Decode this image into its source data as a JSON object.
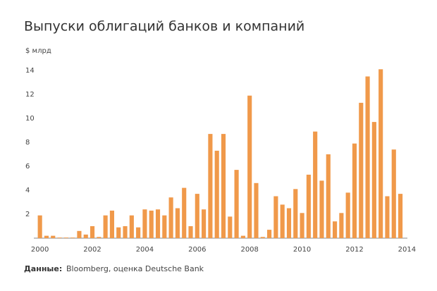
{
  "chart_data": {
    "type": "bar",
    "title": "Выпуски облигаций банков и компаний",
    "y_label": "$ млрд",
    "source_label": "Данные:",
    "source": "Bloomberg, оценка Deutsche Bank",
    "color": "#f0994a",
    "categories": [
      "2000",
      null,
      null,
      null,
      null,
      null,
      null,
      null,
      "2002",
      null,
      null,
      null,
      null,
      null,
      null,
      null,
      "2004",
      null,
      null,
      null,
      null,
      null,
      null,
      null,
      "2006",
      null,
      null,
      null,
      null,
      null,
      null,
      null,
      "2008",
      null,
      null,
      null,
      null,
      null,
      null,
      null,
      "2010",
      null,
      null,
      null,
      null,
      null,
      null,
      null,
      "2012",
      null,
      null,
      null,
      null,
      null,
      null,
      null,
      "2014"
    ],
    "values": [
      1.9,
      0.2,
      0.2,
      0.05,
      0.05,
      0.05,
      0.6,
      0.3,
      1.0,
      0.1,
      1.9,
      2.3,
      0.9,
      1.0,
      1.9,
      0.9,
      2.4,
      2.3,
      2.4,
      1.9,
      3.4,
      2.5,
      4.2,
      1.0,
      3.7,
      2.4,
      8.7,
      7.3,
      8.7,
      1.8,
      5.7,
      0.2,
      11.9,
      4.6,
      0.1,
      0.7,
      3.5,
      2.8,
      2.5,
      4.1,
      2.1,
      5.3,
      8.9,
      4.8,
      7.0,
      1.4,
      2.1,
      3.8,
      7.9,
      11.3,
      13.5,
      9.7,
      14.1,
      3.5,
      7.4,
      3.7,
      null
    ],
    "ylim": [
      0,
      15
    ],
    "yticks": [
      2,
      4,
      6,
      8,
      10,
      12,
      14
    ],
    "grid": false
  }
}
